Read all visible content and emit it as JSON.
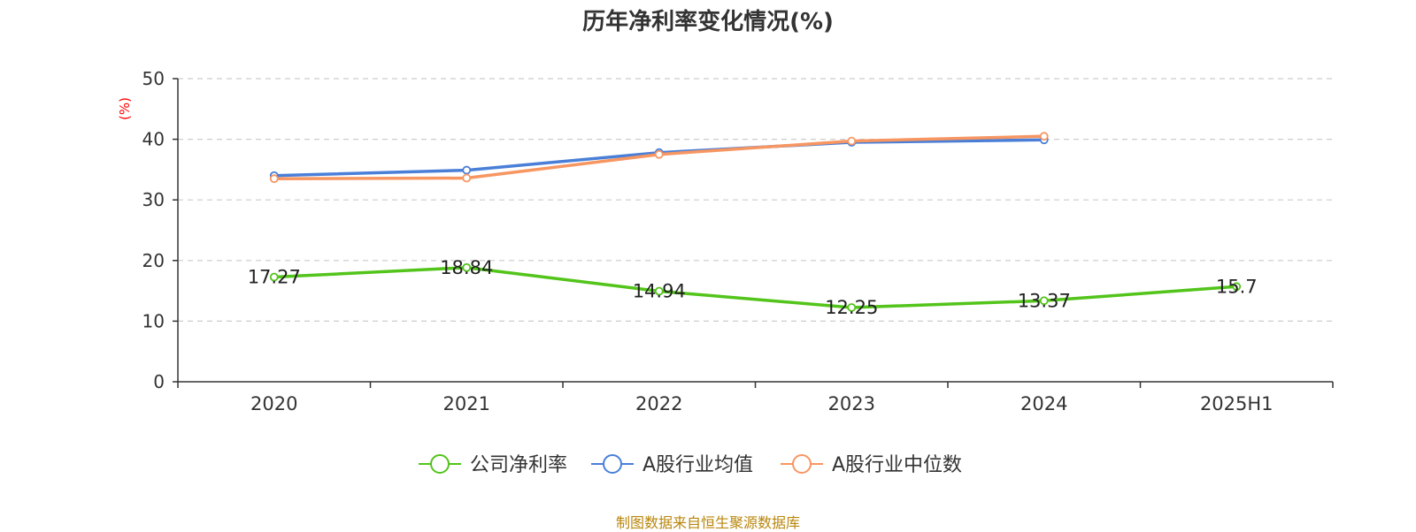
{
  "chart_data": {
    "type": "line",
    "title": "历年净利率变化情况(%)",
    "ylabel": "(%)",
    "xlabel": "",
    "ylim": [
      0,
      50
    ],
    "yticks": [
      0,
      10,
      20,
      30,
      40,
      50
    ],
    "grid": "horizontal dashed",
    "categories": [
      "2020",
      "2021",
      "2022",
      "2023",
      "2024",
      "2025H1"
    ],
    "series": [
      {
        "name": "公司净利率",
        "color": "#52c41a",
        "values": [
          17.27,
          18.84,
          14.94,
          12.25,
          13.37,
          15.7
        ],
        "labels": [
          "17.27",
          "18.84",
          "14.94",
          "12.25",
          "13.37",
          "15.7"
        ]
      },
      {
        "name": "A股行业均值",
        "color": "#4a7fd8",
        "values": [
          34.0,
          34.9,
          37.8,
          39.5,
          39.9,
          null
        ]
      },
      {
        "name": "A股行业中位数",
        "color": "#f79661",
        "values": [
          33.5,
          33.6,
          37.5,
          39.7,
          40.5,
          null
        ]
      }
    ],
    "legend_position": "bottom-center",
    "source": "制图数据来自恒生聚源数据库"
  }
}
